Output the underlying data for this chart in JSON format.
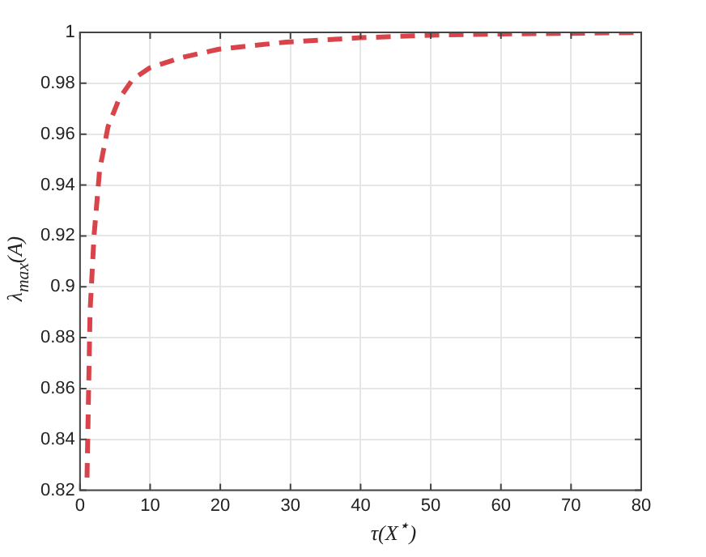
{
  "chart_data": {
    "type": "line",
    "xlabel": "τ(X$^{⋆}$)",
    "ylabel": "λ$_{max}$(A)",
    "series": [
      {
        "color": "#d9434a",
        "x": [
          1,
          1.43,
          2,
          2.8,
          4,
          5.6,
          7.5,
          9.9,
          14.3,
          19.8,
          29.4,
          40,
          50,
          60,
          70,
          80
        ],
        "values": [
          0.825,
          0.89,
          0.92,
          0.946,
          0.963,
          0.974,
          0.9815,
          0.986,
          0.99,
          0.9934,
          0.9962,
          0.9979,
          0.9989,
          0.9994,
          0.9996,
          1
        ]
      }
    ],
    "xlim": [
      0,
      80
    ],
    "ylim": [
      0.82,
      1
    ],
    "xticks": [
      0,
      10,
      20,
      30,
      40,
      50,
      60,
      70,
      80
    ],
    "yticks": [
      0.82,
      0.84,
      0.86,
      0.88,
      0.9,
      0.92,
      0.94,
      0.96,
      0.98,
      1
    ],
    "grid": true,
    "legend": false,
    "marker": "none",
    "line_style": "dashed"
  }
}
